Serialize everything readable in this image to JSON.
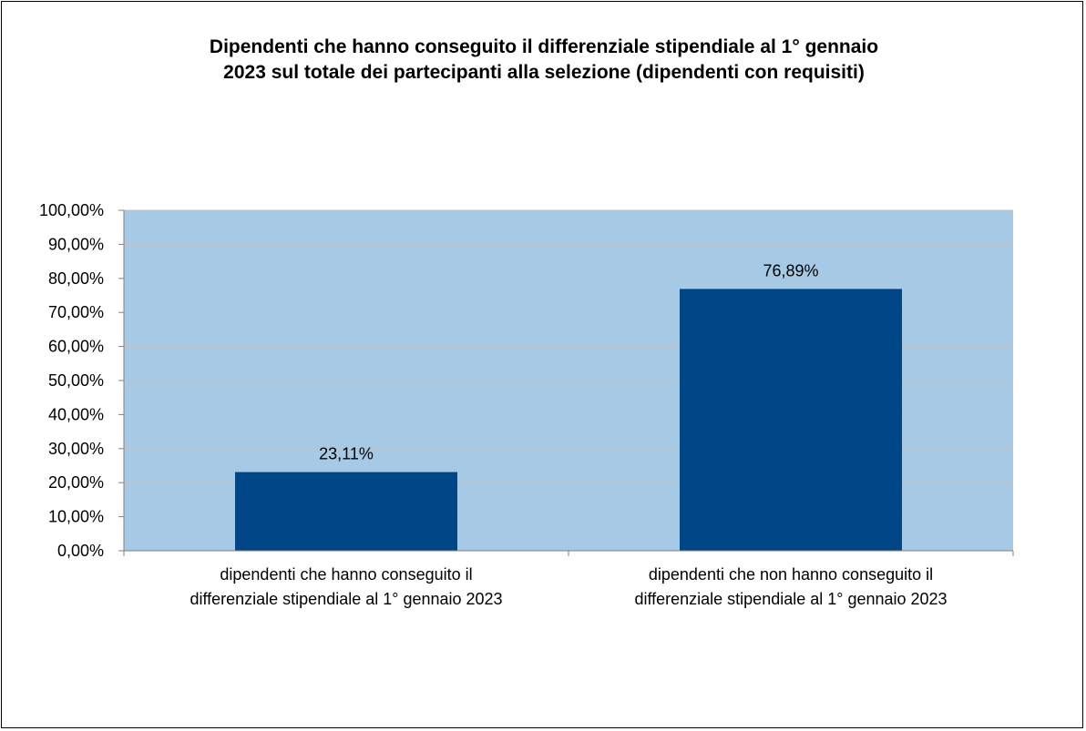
{
  "chart_data": {
    "type": "bar",
    "title_lines": [
      "Dipendenti che hanno conseguito il differenziale stipendiale al 1° gennaio",
      "2023 sul totale dei partecipanti alla selezione (dipendenti con requisiti)"
    ],
    "categories": [
      [
        "dipendenti che hanno conseguito il",
        "differenziale stipendiale al 1° gennaio 2023"
      ],
      [
        "dipendenti che non hanno conseguito il",
        "differenziale stipendiale al 1° gennaio 2023"
      ]
    ],
    "values": [
      23.11,
      76.89
    ],
    "value_labels": [
      "23,11%",
      "76,89%"
    ],
    "ylim": [
      0,
      100
    ],
    "yticks": [
      0,
      10,
      20,
      30,
      40,
      50,
      60,
      70,
      80,
      90,
      100
    ],
    "ytick_labels": [
      "0,00%",
      "10,00%",
      "20,00%",
      "30,00%",
      "40,00%",
      "50,00%",
      "60,00%",
      "70,00%",
      "80,00%",
      "90,00%",
      "100,00%"
    ],
    "grid": true,
    "legend": "none",
    "xlabel": "",
    "ylabel": "",
    "colors": {
      "plot_background": "#a6cae6",
      "bar": "#004586",
      "grid": "#c0c0c0",
      "axis": "#808080"
    }
  }
}
